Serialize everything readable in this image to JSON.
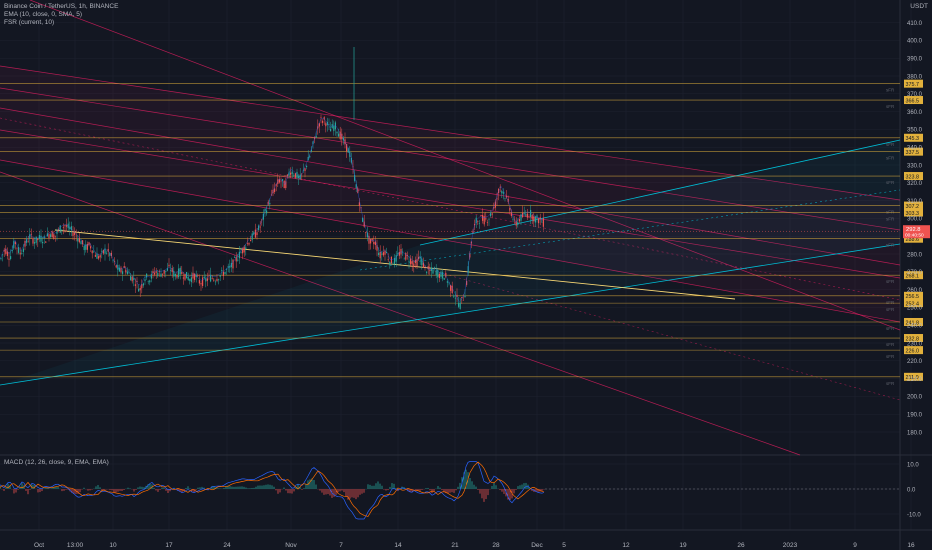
{
  "header": {
    "title": "Binance Coin / TetherUS, 1h, BINANCE",
    "indicators": [
      "EMA (10, close, 0, SMA, 5)",
      "FSR (current, 10)"
    ],
    "macd_label": "MACD (12, 26, close, 9, EMA, EMA)",
    "quote_currency": "USDT"
  },
  "colors": {
    "background": "#131722",
    "up": "#26a69a",
    "down": "#ef5350",
    "resistance": "#e2b13c",
    "channel_red": "#e91e63",
    "channel_blue": "#00bcd4",
    "trend_yellow": "#f7d774",
    "grid": "#1e2230"
  },
  "chart_data": [
    {
      "type": "candlestick",
      "title": "Binance Coin / TetherUS, 1h, BINANCE",
      "y_axis_ticks": [
        410.0,
        400.0,
        390.0,
        380.0,
        370.0,
        360.0,
        350.0,
        340.0,
        330.0,
        320.0,
        310.0,
        300.0,
        290.0,
        280.0,
        270.0,
        260.0,
        250.0,
        240.0,
        230.0,
        220.0,
        210.0,
        200.0,
        190.0,
        180.0
      ],
      "ylim": [
        176,
        420
      ],
      "x_axis_ticks": [
        "Oct",
        "13:00",
        "10",
        "17",
        "24",
        "Nov",
        "7",
        "14",
        "21",
        "28",
        "Dec",
        "5",
        "12",
        "19",
        "26",
        "2023",
        "9",
        "16"
      ],
      "price_levels": [
        375.7,
        366.5,
        345.3,
        337.5,
        323.8,
        307.2,
        303.3,
        288.6,
        268.1,
        256.5,
        252.4,
        241.8,
        232.8,
        226.0,
        211.0
      ],
      "current_price": 292.8,
      "countdown": "00:40:50",
      "price_path": [
        [
          0,
          276
        ],
        [
          5,
          283
        ],
        [
          10,
          278
        ],
        [
          15,
          287
        ],
        [
          20,
          280
        ],
        [
          25,
          285
        ],
        [
          30,
          290
        ],
        [
          35,
          287
        ],
        [
          40,
          289
        ],
        [
          45,
          288
        ],
        [
          50,
          292
        ],
        [
          55,
          290
        ],
        [
          60,
          294
        ],
        [
          65,
          296
        ],
        [
          70,
          294
        ],
        [
          75,
          291
        ],
        [
          80,
          288
        ],
        [
          85,
          283
        ],
        [
          90,
          285
        ],
        [
          95,
          280
        ],
        [
          100,
          278
        ],
        [
          105,
          282
        ],
        [
          110,
          280
        ],
        [
          115,
          274
        ],
        [
          120,
          270
        ],
        [
          125,
          272
        ],
        [
          130,
          268
        ],
        [
          135,
          265
        ],
        [
          140,
          260
        ],
        [
          145,
          267
        ],
        [
          150,
          266
        ],
        [
          155,
          270
        ],
        [
          160,
          269
        ],
        [
          165,
          270
        ],
        [
          170,
          272
        ],
        [
          175,
          268
        ],
        [
          180,
          270
        ],
        [
          185,
          268
        ],
        [
          190,
          266
        ],
        [
          195,
          268
        ],
        [
          200,
          264
        ],
        [
          205,
          265
        ],
        [
          210,
          267
        ],
        [
          215,
          266
        ],
        [
          220,
          268
        ],
        [
          225,
          270
        ],
        [
          230,
          272
        ],
        [
          235,
          276
        ],
        [
          240,
          280
        ],
        [
          245,
          284
        ],
        [
          250,
          288
        ],
        [
          255,
          291
        ],
        [
          260,
          295
        ],
        [
          265,
          303
        ],
        [
          270,
          310
        ],
        [
          275,
          317
        ],
        [
          280,
          322
        ],
        [
          285,
          318
        ],
        [
          290,
          327
        ],
        [
          295,
          325
        ],
        [
          300,
          322
        ],
        [
          305,
          328
        ],
        [
          310,
          335
        ],
        [
          315,
          345
        ],
        [
          320,
          355
        ],
        [
          325,
          355
        ],
        [
          330,
          350
        ],
        [
          335,
          352
        ],
        [
          340,
          347
        ],
        [
          345,
          342
        ],
        [
          350,
          336
        ],
        [
          355,
          322
        ],
        [
          358,
          314
        ],
        [
          362,
          301
        ],
        [
          366,
          293
        ],
        [
          370,
          286
        ],
        [
          375,
          287
        ],
        [
          380,
          279
        ],
        [
          385,
          282
        ],
        [
          390,
          276
        ],
        [
          395,
          276
        ],
        [
          400,
          281
        ],
        [
          405,
          279
        ],
        [
          410,
          277
        ],
        [
          415,
          274
        ],
        [
          420,
          278
        ],
        [
          425,
          272
        ],
        [
          430,
          270
        ],
        [
          435,
          271
        ],
        [
          440,
          268
        ],
        [
          445,
          268
        ],
        [
          450,
          262
        ],
        [
          455,
          257
        ],
        [
          460,
          251
        ],
        [
          465,
          258
        ],
        [
          468,
          270
        ],
        [
          472,
          290
        ],
        [
          476,
          298
        ],
        [
          480,
          300
        ],
        [
          485,
          299
        ],
        [
          490,
          301
        ],
        [
          495,
          307
        ],
        [
          500,
          318
        ],
        [
          505,
          313
        ],
        [
          510,
          306
        ],
        [
          515,
          296
        ],
        [
          520,
          300
        ],
        [
          525,
          302
        ],
        [
          530,
          303
        ],
        [
          535,
          300
        ],
        [
          540,
          299
        ],
        [
          545,
          297
        ]
      ]
    },
    {
      "type": "bar",
      "title": "MACD (12, 26, close, 9, EMA, EMA)",
      "y_axis_ticks": [
        10.0,
        0.0,
        -10.0
      ],
      "ylim": [
        -13,
        13
      ]
    }
  ]
}
